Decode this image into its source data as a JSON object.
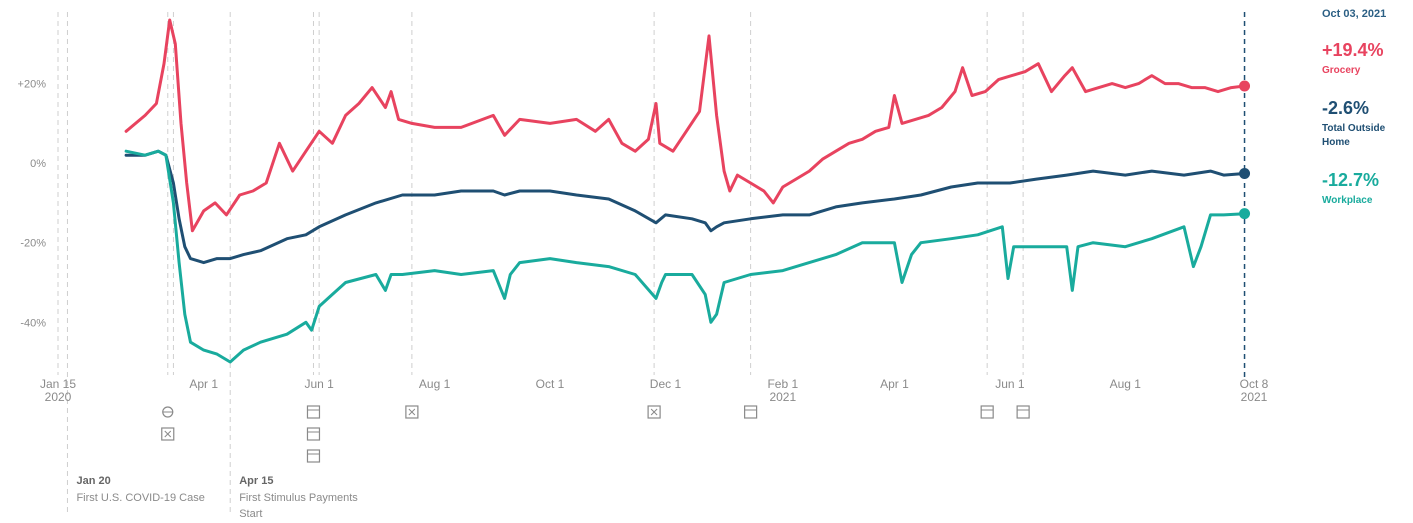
{
  "legend": {
    "date": "Oct 03, 2021",
    "items": [
      {
        "value": "+19.4%",
        "name": "Grocery",
        "color": "#e8435f"
      },
      {
        "value": "-2.6%",
        "name": "Total Outside Home",
        "color": "#1f4f73"
      },
      {
        "value": "-12.7%",
        "name": "Workplace",
        "color": "#19ab9d"
      }
    ]
  },
  "chart_data": {
    "type": "line",
    "title": "",
    "xlabel": "",
    "ylabel": "",
    "ylim": [
      -52,
      38
    ],
    "y_ticks": [
      {
        "value": 20,
        "label": "+20%"
      },
      {
        "value": 0,
        "label": "0%"
      },
      {
        "value": -20,
        "label": "-20%"
      },
      {
        "value": -40,
        "label": "-40%"
      }
    ],
    "x_ticks": [
      {
        "date": "2020-01-15",
        "lines": [
          "Jan 15",
          "2020"
        ]
      },
      {
        "date": "2020-04-01",
        "lines": [
          "Apr 1"
        ]
      },
      {
        "date": "2020-06-01",
        "lines": [
          "Jun 1"
        ]
      },
      {
        "date": "2020-08-01",
        "lines": [
          "Aug 1"
        ]
      },
      {
        "date": "2020-10-01",
        "lines": [
          "Oct 1"
        ]
      },
      {
        "date": "2020-12-01",
        "lines": [
          "Dec 1"
        ]
      },
      {
        "date": "2021-02-01",
        "lines": [
          "Feb 1",
          "2021"
        ]
      },
      {
        "date": "2021-04-01",
        "lines": [
          "Apr 1"
        ]
      },
      {
        "date": "2021-06-01",
        "lines": [
          "Jun 1"
        ]
      },
      {
        "date": "2021-08-01",
        "lines": [
          "Aug 1"
        ]
      },
      {
        "date": "2021-10-08",
        "lines": [
          "Oct 8",
          "2021"
        ]
      }
    ],
    "series": [
      {
        "name": "Grocery",
        "color": "#e8435f",
        "points": [
          [
            "2020-02-20",
            8
          ],
          [
            "2020-03-01",
            12
          ],
          [
            "2020-03-07",
            15
          ],
          [
            "2020-03-11",
            25
          ],
          [
            "2020-03-14",
            36
          ],
          [
            "2020-03-17",
            30
          ],
          [
            "2020-03-20",
            10
          ],
          [
            "2020-03-23",
            -5
          ],
          [
            "2020-03-26",
            -17
          ],
          [
            "2020-04-01",
            -12
          ],
          [
            "2020-04-07",
            -10
          ],
          [
            "2020-04-13",
            -13
          ],
          [
            "2020-04-20",
            -8
          ],
          [
            "2020-04-27",
            -7
          ],
          [
            "2020-05-04",
            -5
          ],
          [
            "2020-05-11",
            5
          ],
          [
            "2020-05-18",
            -2
          ],
          [
            "2020-05-25",
            3
          ],
          [
            "2020-06-01",
            8
          ],
          [
            "2020-06-08",
            5
          ],
          [
            "2020-06-15",
            12
          ],
          [
            "2020-06-22",
            15
          ],
          [
            "2020-06-29",
            19
          ],
          [
            "2020-07-06",
            14
          ],
          [
            "2020-07-09",
            18
          ],
          [
            "2020-07-13",
            11
          ],
          [
            "2020-07-20",
            10
          ],
          [
            "2020-08-01",
            9
          ],
          [
            "2020-08-15",
            9
          ],
          [
            "2020-09-01",
            12
          ],
          [
            "2020-09-07",
            7
          ],
          [
            "2020-09-15",
            11
          ],
          [
            "2020-10-01",
            10
          ],
          [
            "2020-10-15",
            11
          ],
          [
            "2020-10-25",
            8
          ],
          [
            "2020-11-01",
            11
          ],
          [
            "2020-11-08",
            5
          ],
          [
            "2020-11-15",
            3
          ],
          [
            "2020-11-22",
            6
          ],
          [
            "2020-11-26",
            15
          ],
          [
            "2020-11-28",
            5
          ],
          [
            "2020-12-05",
            3
          ],
          [
            "2020-12-12",
            8
          ],
          [
            "2020-12-19",
            13
          ],
          [
            "2020-12-24",
            32
          ],
          [
            "2020-12-28",
            12
          ],
          [
            "2021-01-01",
            -2
          ],
          [
            "2021-01-04",
            -7
          ],
          [
            "2021-01-08",
            -3
          ],
          [
            "2021-01-15",
            -5
          ],
          [
            "2021-01-22",
            -7
          ],
          [
            "2021-01-27",
            -10
          ],
          [
            "2021-02-01",
            -6
          ],
          [
            "2021-02-08",
            -4
          ],
          [
            "2021-02-15",
            -2
          ],
          [
            "2021-02-22",
            1
          ],
          [
            "2021-03-01",
            3
          ],
          [
            "2021-03-08",
            5
          ],
          [
            "2021-03-15",
            6
          ],
          [
            "2021-03-22",
            8
          ],
          [
            "2021-03-29",
            9
          ],
          [
            "2021-04-01",
            17
          ],
          [
            "2021-04-05",
            10
          ],
          [
            "2021-04-12",
            11
          ],
          [
            "2021-04-19",
            12
          ],
          [
            "2021-04-26",
            14
          ],
          [
            "2021-05-03",
            18
          ],
          [
            "2021-05-07",
            24
          ],
          [
            "2021-05-12",
            17
          ],
          [
            "2021-05-19",
            18
          ],
          [
            "2021-05-26",
            21
          ],
          [
            "2021-06-02",
            22
          ],
          [
            "2021-06-09",
            23
          ],
          [
            "2021-06-16",
            25
          ],
          [
            "2021-06-23",
            18
          ],
          [
            "2021-06-30",
            22
          ],
          [
            "2021-07-04",
            24
          ],
          [
            "2021-07-11",
            18
          ],
          [
            "2021-07-18",
            19
          ],
          [
            "2021-07-25",
            20
          ],
          [
            "2021-08-01",
            19
          ],
          [
            "2021-08-08",
            20
          ],
          [
            "2021-08-15",
            22
          ],
          [
            "2021-08-22",
            20
          ],
          [
            "2021-08-29",
            20
          ],
          [
            "2021-09-05",
            19
          ],
          [
            "2021-09-12",
            19
          ],
          [
            "2021-09-19",
            18
          ],
          [
            "2021-09-26",
            19
          ],
          [
            "2021-10-03",
            19.4
          ]
        ]
      },
      {
        "name": "Total Outside Home",
        "color": "#1f4f73",
        "points": [
          [
            "2020-02-20",
            2
          ],
          [
            "2020-03-01",
            2
          ],
          [
            "2020-03-08",
            3
          ],
          [
            "2020-03-12",
            2
          ],
          [
            "2020-03-16",
            -5
          ],
          [
            "2020-03-19",
            -14
          ],
          [
            "2020-03-22",
            -21
          ],
          [
            "2020-03-25",
            -24
          ],
          [
            "2020-04-01",
            -25
          ],
          [
            "2020-04-08",
            -24
          ],
          [
            "2020-04-15",
            -24
          ],
          [
            "2020-04-22",
            -23
          ],
          [
            "2020-05-01",
            -22
          ],
          [
            "2020-05-15",
            -19
          ],
          [
            "2020-05-25",
            -18
          ],
          [
            "2020-06-01",
            -16
          ],
          [
            "2020-06-15",
            -13
          ],
          [
            "2020-07-01",
            -10
          ],
          [
            "2020-07-15",
            -8
          ],
          [
            "2020-08-01",
            -8
          ],
          [
            "2020-08-15",
            -7
          ],
          [
            "2020-09-01",
            -7
          ],
          [
            "2020-09-07",
            -8
          ],
          [
            "2020-09-15",
            -7
          ],
          [
            "2020-10-01",
            -7
          ],
          [
            "2020-10-15",
            -8
          ],
          [
            "2020-11-01",
            -9
          ],
          [
            "2020-11-15",
            -12
          ],
          [
            "2020-11-26",
            -15
          ],
          [
            "2020-12-01",
            -13
          ],
          [
            "2020-12-15",
            -14
          ],
          [
            "2020-12-22",
            -15
          ],
          [
            "2020-12-25",
            -17
          ],
          [
            "2020-12-28",
            -16
          ],
          [
            "2021-01-01",
            -15
          ],
          [
            "2021-01-15",
            -14
          ],
          [
            "2021-02-01",
            -13
          ],
          [
            "2021-02-15",
            -13
          ],
          [
            "2021-03-01",
            -11
          ],
          [
            "2021-03-15",
            -10
          ],
          [
            "2021-04-01",
            -9
          ],
          [
            "2021-04-15",
            -8
          ],
          [
            "2021-05-01",
            -6
          ],
          [
            "2021-05-15",
            -5
          ],
          [
            "2021-06-01",
            -5
          ],
          [
            "2021-06-15",
            -4
          ],
          [
            "2021-07-01",
            -3
          ],
          [
            "2021-07-15",
            -2
          ],
          [
            "2021-08-01",
            -3
          ],
          [
            "2021-08-15",
            -2
          ],
          [
            "2021-09-01",
            -3
          ],
          [
            "2021-09-15",
            -2
          ],
          [
            "2021-09-22",
            -3
          ],
          [
            "2021-10-03",
            -2.6
          ]
        ]
      },
      {
        "name": "Workplace",
        "color": "#19ab9d",
        "points": [
          [
            "2020-02-20",
            3
          ],
          [
            "2020-03-01",
            2
          ],
          [
            "2020-03-08",
            3
          ],
          [
            "2020-03-12",
            2
          ],
          [
            "2020-03-16",
            -10
          ],
          [
            "2020-03-19",
            -25
          ],
          [
            "2020-03-22",
            -38
          ],
          [
            "2020-03-25",
            -45
          ],
          [
            "2020-04-01",
            -47
          ],
          [
            "2020-04-08",
            -48
          ],
          [
            "2020-04-15",
            -50
          ],
          [
            "2020-04-22",
            -47
          ],
          [
            "2020-05-01",
            -45
          ],
          [
            "2020-05-15",
            -43
          ],
          [
            "2020-05-25",
            -40
          ],
          [
            "2020-05-28",
            -42
          ],
          [
            "2020-06-01",
            -36
          ],
          [
            "2020-06-08",
            -33
          ],
          [
            "2020-06-15",
            -30
          ],
          [
            "2020-07-01",
            -28
          ],
          [
            "2020-07-06",
            -32
          ],
          [
            "2020-07-09",
            -28
          ],
          [
            "2020-07-15",
            -28
          ],
          [
            "2020-08-01",
            -27
          ],
          [
            "2020-08-15",
            -28
          ],
          [
            "2020-09-01",
            -27
          ],
          [
            "2020-09-07",
            -34
          ],
          [
            "2020-09-10",
            -28
          ],
          [
            "2020-09-15",
            -25
          ],
          [
            "2020-10-01",
            -24
          ],
          [
            "2020-10-15",
            -25
          ],
          [
            "2020-11-01",
            -26
          ],
          [
            "2020-11-15",
            -28
          ],
          [
            "2020-11-26",
            -34
          ],
          [
            "2020-11-29",
            -30
          ],
          [
            "2020-12-01",
            -28
          ],
          [
            "2020-12-15",
            -28
          ],
          [
            "2020-12-22",
            -33
          ],
          [
            "2020-12-25",
            -40
          ],
          [
            "2020-12-28",
            -38
          ],
          [
            "2021-01-01",
            -30
          ],
          [
            "2021-01-15",
            -28
          ],
          [
            "2021-02-01",
            -27
          ],
          [
            "2021-02-15",
            -25
          ],
          [
            "2021-03-01",
            -23
          ],
          [
            "2021-03-15",
            -20
          ],
          [
            "2021-04-01",
            -20
          ],
          [
            "2021-04-05",
            -30
          ],
          [
            "2021-04-10",
            -23
          ],
          [
            "2021-04-15",
            -20
          ],
          [
            "2021-05-01",
            -19
          ],
          [
            "2021-05-15",
            -18
          ],
          [
            "2021-05-28",
            -16
          ],
          [
            "2021-05-31",
            -29
          ],
          [
            "2021-06-03",
            -21
          ],
          [
            "2021-06-15",
            -21
          ],
          [
            "2021-07-01",
            -21
          ],
          [
            "2021-07-04",
            -32
          ],
          [
            "2021-07-07",
            -21
          ],
          [
            "2021-07-15",
            -20
          ],
          [
            "2021-08-01",
            -21
          ],
          [
            "2021-08-15",
            -19
          ],
          [
            "2021-09-01",
            -16
          ],
          [
            "2021-09-06",
            -26
          ],
          [
            "2021-09-10",
            -21
          ],
          [
            "2021-09-15",
            -13
          ],
          [
            "2021-09-22",
            -13
          ],
          [
            "2021-10-03",
            -12.7
          ]
        ]
      }
    ],
    "annotations": [
      {
        "date": "2020-01-20",
        "title": "Jan 20",
        "text": [
          "First U.S. COVID-19 Case"
        ]
      },
      {
        "date": "2020-04-15",
        "title": "Apr 15",
        "text": [
          "First Stimulus Payments",
          "Start"
        ]
      }
    ],
    "event_icons": [
      {
        "date": "2020-03-13",
        "icons": [
          "flu-icon",
          "closure-icon"
        ]
      },
      {
        "date": "2020-05-29",
        "icons": [
          "store-icon",
          "store-icon",
          "store-icon"
        ]
      },
      {
        "date": "2020-07-20",
        "icons": [
          "closure-icon"
        ]
      },
      {
        "date": "2020-11-25",
        "icons": [
          "closure-icon"
        ]
      },
      {
        "date": "2021-01-15",
        "icons": [
          "store-icon"
        ]
      },
      {
        "date": "2021-05-20",
        "icons": [
          "store-icon"
        ]
      },
      {
        "date": "2021-06-08",
        "icons": [
          "store-icon"
        ]
      }
    ],
    "dashed_lines": [
      "2020-01-20",
      "2020-03-13",
      "2020-03-16",
      "2020-04-15",
      "2020-05-29",
      "2020-06-01",
      "2020-07-20",
      "2020-11-25",
      "2021-01-15",
      "2021-05-20",
      "2021-06-08"
    ],
    "current_date": "2021-10-03",
    "grid": false
  }
}
